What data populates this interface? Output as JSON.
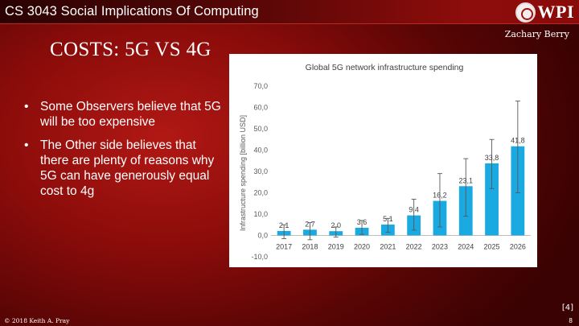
{
  "header": {
    "course_title": "CS 3043 Social Implications Of Computing",
    "logo_text": "WPI"
  },
  "author": "Zachary Berry",
  "slide": {
    "title": "COSTS: 5G VS 4G",
    "bullets": [
      "Some Observers believe that 5G will be too expensive",
      "The Other side believes that there are plenty of reasons why 5G can have generously equal cost to 4g"
    ]
  },
  "footer": {
    "reference": "[4]",
    "copyright": "© 2018 Keith A. Pray",
    "page_number": "8"
  },
  "colors": {
    "bar": "#1aa9e0",
    "error_bar": "#595959",
    "slide_bg": "#8a0c0a"
  },
  "chart_data": {
    "type": "bar",
    "title": "Global 5G network infrastructure spending",
    "xlabel": "",
    "ylabel": "Infrastructure spending [billion USD]",
    "categories": [
      "2017",
      "2018",
      "2019",
      "2020",
      "2021",
      "2022",
      "2023",
      "2024",
      "2025",
      "2026"
    ],
    "values": [
      2.1,
      2.7,
      2.0,
      3.6,
      5.1,
      9.4,
      16.2,
      23.1,
      33.8,
      41.8
    ],
    "value_labels": [
      "2,1",
      "2,7",
      "2,0",
      "3,6",
      "5,1",
      "9,4",
      "16,2",
      "23,1",
      "33,8",
      "41,8"
    ],
    "error_low": [
      -1.5,
      -2.0,
      -0.8,
      0.5,
      1.5,
      2.5,
      4.0,
      9.0,
      22.0,
      20.0
    ],
    "error_high": [
      5.0,
      6.0,
      4.0,
      7.0,
      8.0,
      17.0,
      29.0,
      36.0,
      45.0,
      63.0
    ],
    "ylim": [
      -10,
      70
    ],
    "yticks": [
      -10,
      0,
      10,
      20,
      30,
      40,
      50,
      60,
      70
    ],
    "ytick_labels": [
      "-10,0",
      "0,0",
      "10,0",
      "20,0",
      "30,0",
      "40,0",
      "50,0",
      "60,0",
      "70,0"
    ],
    "grid": false,
    "legend": "none"
  }
}
